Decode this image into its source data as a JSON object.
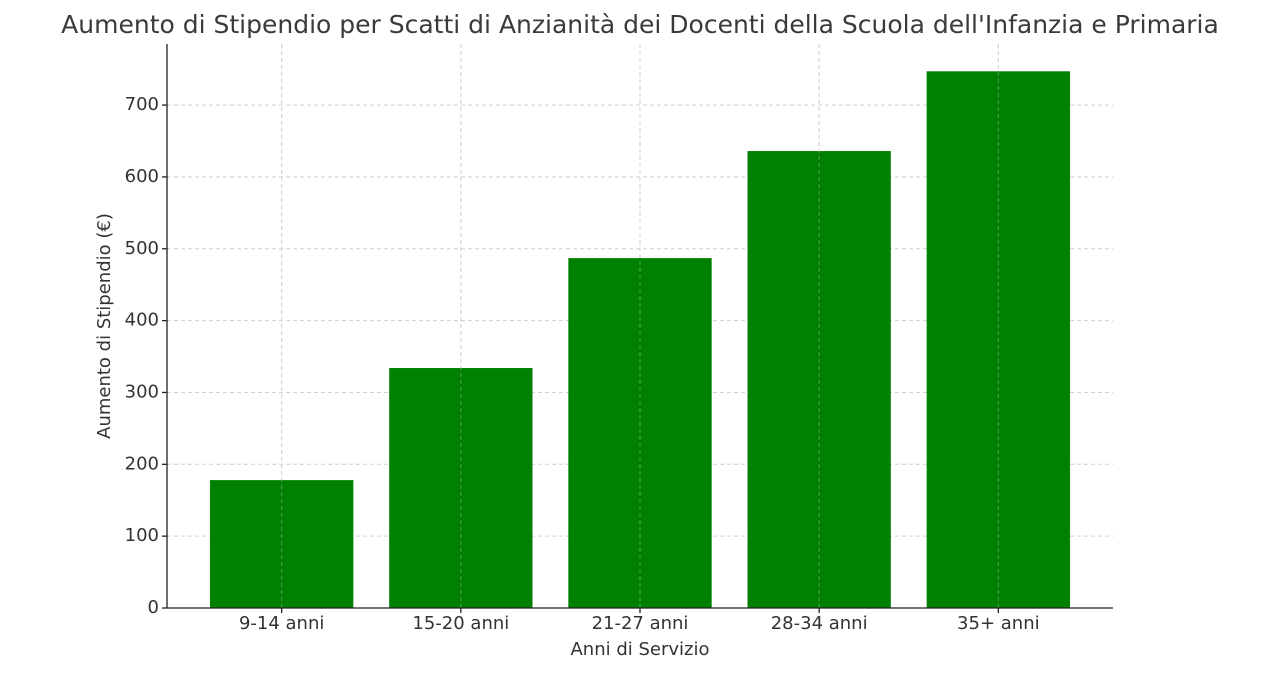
{
  "chart_data": {
    "type": "bar",
    "title": "Aumento di Stipendio per Scatti di Anzianità dei Docenti della Scuola dell'Infanzia e Primaria",
    "x_label": "Anni di Servizio",
    "y_label": "Aumento di Stipendio (€)",
    "categories": [
      "9-14 anni",
      "15-20 anni",
      "21-27 anni",
      "28-34 anni",
      "35+ anni"
    ],
    "values": [
      178,
      334,
      487,
      636,
      747
    ],
    "color": "#008000",
    "ylim": [
      0,
      785
    ],
    "yticks": [
      0,
      100,
      200,
      300,
      400,
      500,
      600,
      700
    ],
    "grid": true
  }
}
